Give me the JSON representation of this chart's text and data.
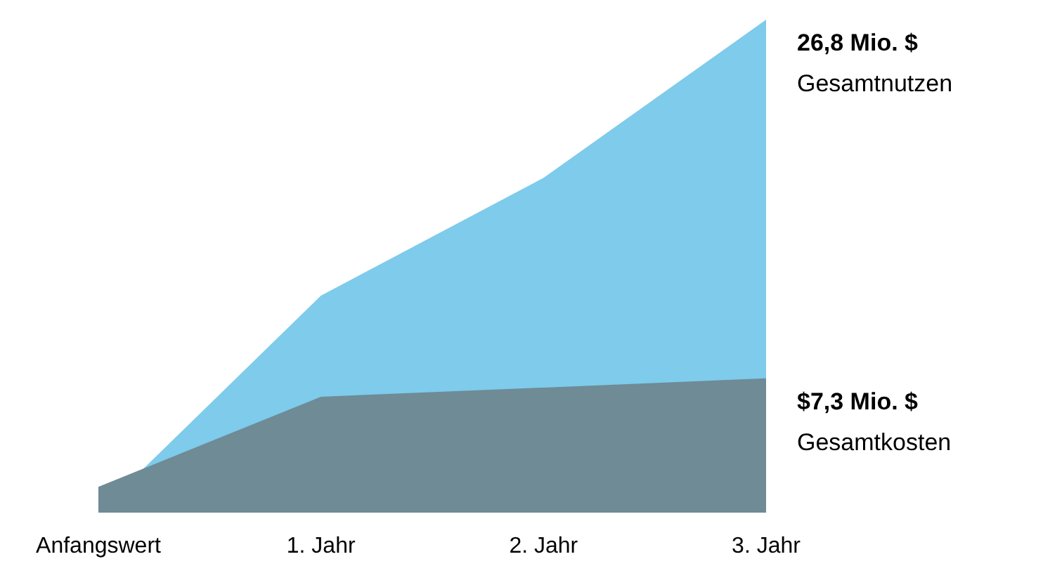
{
  "chart_data": {
    "type": "area",
    "categories": [
      "Anfangswert",
      "1. Jahr",
      "2. Jahr",
      "3. Jahr"
    ],
    "series": [
      {
        "name": "Gesamtnutzen",
        "color": "#7ecbeb",
        "values": [
          0,
          11.8,
          18.2,
          26.8
        ],
        "value_labels": [
          null,
          null,
          null,
          "26,8 Mio. $"
        ]
      },
      {
        "name": "Gesamtkosten",
        "color": "#6f8b96",
        "values": [
          1.4,
          6.3,
          6.8,
          7.3
        ],
        "value_labels": [
          null,
          null,
          null,
          "$7,3 Mio. $"
        ]
      }
    ]
  }
}
